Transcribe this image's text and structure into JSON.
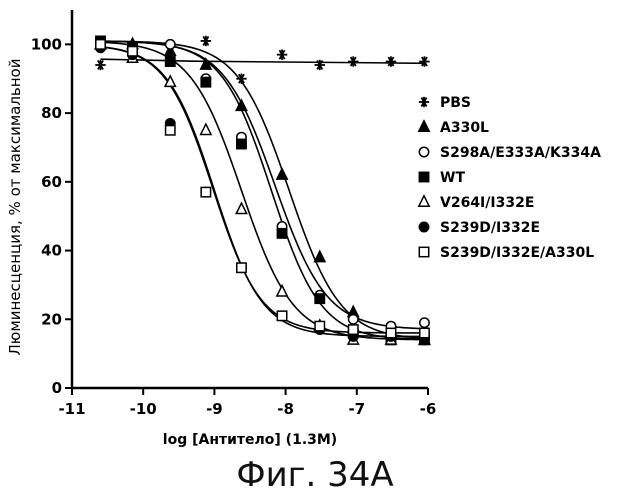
{
  "chart_data": {
    "type": "scatter",
    "xlabel": "log [Антитело] (1.3M)",
    "ylabel": "Люминесценция, % от максимальной",
    "xlim": [
      -11,
      -6
    ],
    "ylim": [
      0,
      110
    ],
    "xticks": [
      -11,
      -10,
      -9,
      -8,
      -7,
      -6
    ],
    "xtick_labels": [
      "-11",
      "-10",
      "-9",
      "-8",
      "-7",
      "-6"
    ],
    "yticks": [
      0,
      20,
      40,
      60,
      80,
      100
    ],
    "ytick_labels": [
      "0",
      "20",
      "40",
      "60",
      "80",
      "100"
    ],
    "grid": false,
    "legend_position": "right",
    "series": [
      {
        "name": "PBS",
        "marker": "asterisk",
        "x": [
          -10.6,
          -10.15,
          -9.62,
          -9.12,
          -8.62,
          -8.05,
          -7.52,
          -7.05,
          -6.52,
          -6.05
        ],
        "y": [
          94,
          99,
          97,
          101,
          90,
          97,
          94,
          95,
          95,
          95
        ],
        "curve": {
          "type": "flat",
          "value": 94.5
        }
      },
      {
        "name": "A330L",
        "marker": "filled-triangle",
        "x": [
          -10.6,
          -10.15,
          -9.62,
          -9.12,
          -8.62,
          -8.05,
          -7.52,
          -7.05,
          -6.52,
          -6.05
        ],
        "y": [
          100,
          100,
          98,
          94,
          82,
          62,
          38,
          22,
          16,
          14
        ],
        "curve": {
          "type": "sigmoid",
          "top": 101,
          "bottom": 14,
          "ec50": -7.95,
          "hill": 1.2
        }
      },
      {
        "name": "S298A/E333A/K334A",
        "marker": "open-circle",
        "x": [
          -10.6,
          -10.15,
          -9.62,
          -9.12,
          -8.62,
          -8.05,
          -7.52,
          -7.05,
          -6.52,
          -6.05
        ],
        "y": [
          100,
          99,
          100,
          90,
          73,
          47,
          27,
          20,
          18,
          19
        ],
        "curve": {
          "type": "sigmoid",
          "top": 101,
          "bottom": 17,
          "ec50": -8.15,
          "hill": 1.2
        }
      },
      {
        "name": "WT",
        "marker": "filled-square",
        "x": [
          -10.6,
          -10.15,
          -9.62,
          -9.12,
          -8.62,
          -8.05,
          -7.52,
          -7.05,
          -6.52,
          -6.05
        ],
        "y": [
          101,
          99,
          95,
          89,
          71,
          45,
          26,
          16,
          14,
          14
        ],
        "curve": {
          "type": "sigmoid",
          "top": 101,
          "bottom": 14,
          "ec50": -8.2,
          "hill": 1.25
        }
      },
      {
        "name": "V264I/I332E",
        "marker": "open-triangle",
        "x": [
          -10.6,
          -10.15,
          -9.62,
          -9.12,
          -8.62,
          -8.05,
          -7.52,
          -7.05,
          -6.52,
          -6.05
        ],
        "y": [
          100,
          96,
          89,
          75,
          52,
          28,
          18,
          14,
          14,
          14
        ],
        "curve": {
          "type": "sigmoid",
          "top": 101,
          "bottom": 14,
          "ec50": -8.62,
          "hill": 1.2
        }
      },
      {
        "name": "S239D/I332E",
        "marker": "filled-circle",
        "x": [
          -10.6,
          -10.15,
          -9.62,
          -9.12,
          -8.62,
          -8.05,
          -7.52,
          -7.05,
          -6.52,
          -6.05
        ],
        "y": [
          99,
          97,
          77,
          57,
          35,
          21,
          17,
          15,
          15,
          14
        ],
        "curve": {
          "type": "sigmoid",
          "top": 100,
          "bottom": 15,
          "ec50": -9.0,
          "hill": 1.3
        }
      },
      {
        "name": "S239D/I332E/A330L",
        "marker": "open-square",
        "x": [
          -10.6,
          -10.15,
          -9.62,
          -9.12,
          -8.62,
          -8.05,
          -7.52,
          -7.05,
          -6.52,
          -6.05
        ],
        "y": [
          100,
          98,
          75,
          57,
          35,
          21,
          18,
          17,
          16,
          16
        ],
        "curve": {
          "type": "sigmoid",
          "top": 100,
          "bottom": 16,
          "ec50": -9.02,
          "hill": 1.3
        }
      }
    ]
  },
  "caption": "Фиг. 34А"
}
